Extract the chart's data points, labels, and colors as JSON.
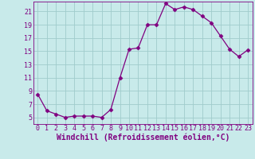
{
  "x": [
    0,
    1,
    2,
    3,
    4,
    5,
    6,
    7,
    8,
    9,
    10,
    11,
    12,
    13,
    14,
    15,
    16,
    17,
    18,
    19,
    20,
    21,
    22,
    23
  ],
  "y": [
    8.5,
    6.0,
    5.5,
    5.0,
    5.2,
    5.2,
    5.2,
    5.0,
    6.2,
    11.0,
    15.3,
    15.5,
    19.0,
    19.0,
    22.2,
    21.3,
    21.7,
    21.3,
    20.3,
    19.3,
    17.3,
    15.3,
    14.2,
    15.2
  ],
  "line_color": "#800080",
  "marker": "D",
  "marker_size": 2.5,
  "bg_color": "#c8eaea",
  "grid_color": "#a0cccc",
  "xlabel": "Windchill (Refroidissement éolien,°C)",
  "xlim": [
    -0.5,
    23.5
  ],
  "ylim": [
    4.0,
    22.5
  ],
  "yticks": [
    5,
    7,
    9,
    11,
    13,
    15,
    17,
    19,
    21
  ],
  "xticks": [
    0,
    1,
    2,
    3,
    4,
    5,
    6,
    7,
    8,
    9,
    10,
    11,
    12,
    13,
    14,
    15,
    16,
    17,
    18,
    19,
    20,
    21,
    22,
    23
  ],
  "tick_fontsize": 6,
  "xlabel_fontsize": 7
}
